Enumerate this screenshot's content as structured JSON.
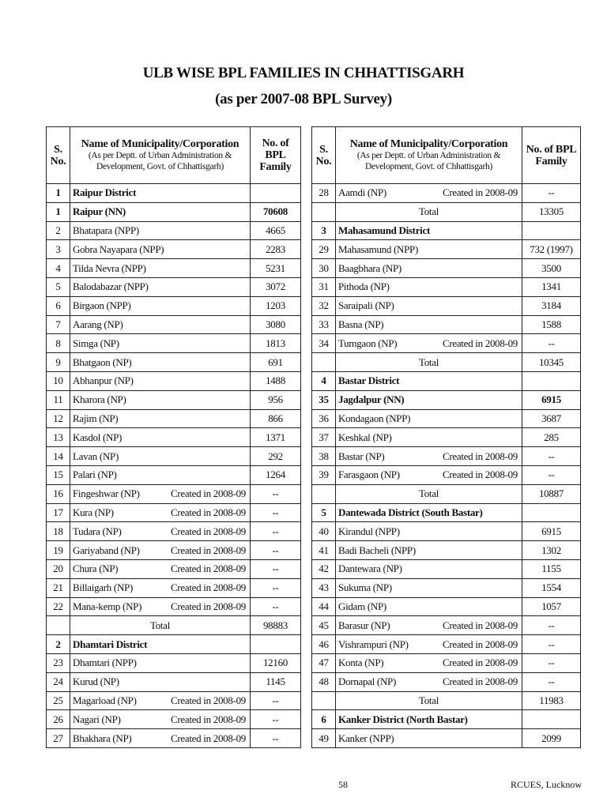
{
  "title_line1": "ULB WISE BPL FAMILIES IN CHHATTISGARH",
  "title_line2": "(as per 2007-08 BPL Survey)",
  "header": {
    "sno": "S. No.",
    "name": "Name of Municipality/Corporation",
    "name_sub": "(As per Deptt. of Urban Administration & Development, Govt. of Chhattisgarh)",
    "value": "No. of BPL Family"
  },
  "left_rows": [
    {
      "sno": "1",
      "name": "Raipur District",
      "note": "",
      "value": "",
      "type": "bold"
    },
    {
      "sno": "1",
      "name": "Raipur (NN)",
      "note": "",
      "value": "70608",
      "type": "bold"
    },
    {
      "sno": "2",
      "name": "Bhatapara (NPP)",
      "note": "",
      "value": "4665",
      "type": "item"
    },
    {
      "sno": "3",
      "name": "Gobra Nayapara (NPP)",
      "note": "",
      "value": "2283",
      "type": "item"
    },
    {
      "sno": "4",
      "name": "Tilda Nevra (NPP)",
      "note": "",
      "value": "5231",
      "type": "item"
    },
    {
      "sno": "5",
      "name": "Balodabazar (NPP)",
      "note": "",
      "value": "3072",
      "type": "item"
    },
    {
      "sno": "6",
      "name": "Birgaon (NPP)",
      "note": "",
      "value": "1203",
      "type": "item"
    },
    {
      "sno": "7",
      "name": "Aarang (NP)",
      "note": "",
      "value": "3080",
      "type": "item"
    },
    {
      "sno": "8",
      "name": "Simga (NP)",
      "note": "",
      "value": "1813",
      "type": "item"
    },
    {
      "sno": "9",
      "name": "Bhatgaon (NP)",
      "note": "",
      "value": "691",
      "type": "item"
    },
    {
      "sno": "10",
      "name": "Abhanpur (NP)",
      "note": "",
      "value": "1488",
      "type": "item"
    },
    {
      "sno": "11",
      "name": "Kharora (NP)",
      "note": "",
      "value": "956",
      "type": "item"
    },
    {
      "sno": "12",
      "name": "Rajim (NP)",
      "note": "",
      "value": "866",
      "type": "item"
    },
    {
      "sno": "13",
      "name": "Kasdol (NP)",
      "note": "",
      "value": "1371",
      "type": "item"
    },
    {
      "sno": "14",
      "name": "Lavan (NP)",
      "note": "",
      "value": "292",
      "type": "item"
    },
    {
      "sno": "15",
      "name": "Palari (NP)",
      "note": "",
      "value": "1264",
      "type": "item"
    },
    {
      "sno": "16",
      "name": "Fingeshwar (NP)",
      "note": "Created in 2008-09",
      "value": "--",
      "type": "item"
    },
    {
      "sno": "17",
      "name": "Kura (NP)",
      "note": "Created in 2008-09",
      "value": "--",
      "type": "item"
    },
    {
      "sno": "18",
      "name": "Tudara (NP)",
      "note": "Created in 2008-09",
      "value": "--",
      "type": "item"
    },
    {
      "sno": "19",
      "name": "Gariyaband (NP)",
      "note": "Created in 2008-09",
      "value": "--",
      "type": "item"
    },
    {
      "sno": "20",
      "name": "Chura (NP)",
      "note": "Created in 2008-09",
      "value": "--",
      "type": "item"
    },
    {
      "sno": "21",
      "name": "Billaigarh (NP)",
      "note": "Created in 2008-09",
      "value": "--",
      "type": "item"
    },
    {
      "sno": "22",
      "name": "Mana-kemp (NP)",
      "note": "Created in 2008-09",
      "value": "--",
      "type": "item"
    },
    {
      "sno": "",
      "name": "Total",
      "note": "",
      "value": "98883",
      "type": "total"
    },
    {
      "sno": "2",
      "name": "Dhamtari District",
      "note": "",
      "value": "",
      "type": "bold"
    },
    {
      "sno": "23",
      "name": "Dhamtari (NPP)",
      "note": "",
      "value": "12160",
      "type": "item"
    },
    {
      "sno": "24",
      "name": "Kurud (NP)",
      "note": "",
      "value": "1145",
      "type": "item"
    },
    {
      "sno": "25",
      "name": "Magarload (NP)",
      "note": "Created in 2008-09",
      "value": "--",
      "type": "item"
    },
    {
      "sno": "26",
      "name": "Nagari (NP)",
      "note": "Created in 2008-09",
      "value": "--",
      "type": "item"
    },
    {
      "sno": "27",
      "name": "Bhakhara (NP)",
      "note": "Created in 2008-09",
      "value": "--",
      "type": "item"
    }
  ],
  "right_rows": [
    {
      "sno": "28",
      "name": "Aamdi (NP)",
      "note": "Created in 2008-09",
      "value": "--",
      "type": "item"
    },
    {
      "sno": "",
      "name": "Total",
      "note": "",
      "value": "13305",
      "type": "total"
    },
    {
      "sno": "3",
      "name": "Mahasamund District",
      "note": "",
      "value": "",
      "type": "bold"
    },
    {
      "sno": "29",
      "name": "Mahasamund (NPP)",
      "note": "",
      "value": "732 (1997)",
      "type": "item"
    },
    {
      "sno": "30",
      "name": "Baagbhara (NP)",
      "note": "",
      "value": "3500",
      "type": "item"
    },
    {
      "sno": "31",
      "name": "Pithoda (NP)",
      "note": "",
      "value": "1341",
      "type": "item"
    },
    {
      "sno": "32",
      "name": "Saraipali (NP)",
      "note": "",
      "value": "3184",
      "type": "item"
    },
    {
      "sno": "33",
      "name": "Basna (NP)",
      "note": "",
      "value": "1588",
      "type": "item"
    },
    {
      "sno": "34",
      "name": "Tumgaon (NP)",
      "note": "Created in 2008-09",
      "value": "--",
      "type": "item"
    },
    {
      "sno": "",
      "name": "Total",
      "note": "",
      "value": "10345",
      "type": "total"
    },
    {
      "sno": "4",
      "name": "Bastar District",
      "note": "",
      "value": "",
      "type": "bold"
    },
    {
      "sno": "35",
      "name": "Jagdalpur (NN)",
      "note": "",
      "value": "6915",
      "type": "bold"
    },
    {
      "sno": "36",
      "name": "Kondagaon (NPP)",
      "note": "",
      "value": "3687",
      "type": "item"
    },
    {
      "sno": "37",
      "name": "Keshkal (NP)",
      "note": "",
      "value": "285",
      "type": "item"
    },
    {
      "sno": "38",
      "name": "Bastar (NP)",
      "note": "Created in 2008-09",
      "value": "--",
      "type": "item"
    },
    {
      "sno": "39",
      "name": "Farasgaon (NP)",
      "note": "Created in 2008-09",
      "value": "--",
      "type": "item"
    },
    {
      "sno": "",
      "name": "Total",
      "note": "",
      "value": "10887",
      "type": "total"
    },
    {
      "sno": "5",
      "name": "Dantewada District (South Bastar)",
      "note": "",
      "value": "",
      "type": "bold"
    },
    {
      "sno": "40",
      "name": "Kirandul (NPP)",
      "note": "",
      "value": "6915",
      "type": "item"
    },
    {
      "sno": "41",
      "name": "Badi Bacheli (NPP)",
      "note": "",
      "value": "1302",
      "type": "item"
    },
    {
      "sno": "42",
      "name": "Dantewara (NP)",
      "note": "",
      "value": "1155",
      "type": "item"
    },
    {
      "sno": "43",
      "name": "Sukuma (NP)",
      "note": "",
      "value": "1554",
      "type": "item"
    },
    {
      "sno": "44",
      "name": "Gidam (NP)",
      "note": "",
      "value": "1057",
      "type": "item"
    },
    {
      "sno": "45",
      "name": "Barasur (NP)",
      "note": "Created in 2008-09",
      "value": "--",
      "type": "item"
    },
    {
      "sno": "46",
      "name": "Vishrampuri (NP)",
      "note": "Created in 2008-09",
      "value": "--",
      "type": "item"
    },
    {
      "sno": "47",
      "name": "Konta (NP)",
      "note": "Created in 2008-09",
      "value": "--",
      "type": "item"
    },
    {
      "sno": "48",
      "name": "Dornapal (NP)",
      "note": "Created in 2008-09",
      "value": "--",
      "type": "item"
    },
    {
      "sno": "",
      "name": "Total",
      "note": "",
      "value": "11983",
      "type": "total"
    },
    {
      "sno": "6",
      "name": "Kanker District (North Bastar)",
      "note": "",
      "value": "",
      "type": "bold"
    },
    {
      "sno": "49",
      "name": "Kanker (NPP)",
      "note": "",
      "value": "2099",
      "type": "item"
    }
  ],
  "footer": {
    "page_number": "58",
    "source": "RCUES, Lucknow"
  }
}
